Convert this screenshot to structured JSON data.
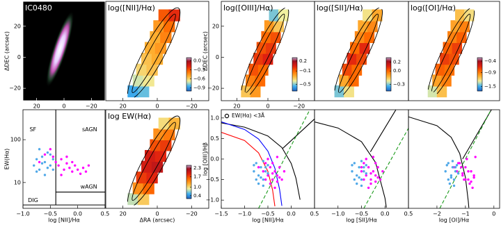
{
  "chart_data": [
    {
      "type": "image",
      "title": "IC0480",
      "ylabel": "ΔDEC (arcsec)",
      "xlim": [
        30,
        -30
      ],
      "ylim": [
        -28,
        36
      ],
      "xticks": [
        20,
        0,
        {
          "value": -20,
          "label": "−20"
        }
      ],
      "yticks": [
        20,
        0,
        {
          "value": -20,
          "label": "−20"
        }
      ]
    },
    {
      "type": "map",
      "title": "log([NII]/Hα)",
      "xlim": [
        30,
        -30
      ],
      "ylim": [
        -28,
        36
      ],
      "xticks": [
        20,
        0,
        {
          "value": -20,
          "label": "−20"
        }
      ],
      "x": [
        14,
        8,
        11,
        5,
        9,
        3,
        6,
        0,
        4,
        -2,
        1,
        -5,
        -1,
        -7,
        -4,
        -10
      ],
      "y": [
        -22,
        -22,
        -15,
        -15,
        -8,
        -8,
        -1,
        -1,
        6,
        6,
        13,
        13,
        20,
        20,
        27,
        27
      ],
      "values": [
        -0.85,
        -0.8,
        -0.7,
        -0.65,
        -0.6,
        -0.55,
        -0.55,
        -0.5,
        -0.5,
        -0.45,
        -0.5,
        -0.4,
        -0.45,
        -0.35,
        -0.3,
        -0.2
      ],
      "clim": [
        -1.0,
        0.1
      ],
      "cticks": [
        {
          "value": 0,
          "label": "0.0"
        },
        {
          "value": -0.3,
          "label": "−0.3"
        },
        {
          "value": -0.6,
          "label": "−0.6"
        },
        {
          "value": -0.9,
          "label": "−0.9"
        }
      ]
    },
    {
      "type": "map",
      "title": "log([OIII]/Hα)",
      "ylabel": "ΔDEC (arcsec)",
      "xlim": [
        30,
        -30
      ],
      "ylim": [
        -28,
        36
      ],
      "xticks": [
        20,
        0,
        {
          "value": -20,
          "label": "−20"
        }
      ],
      "yticks": [
        20,
        0,
        {
          "value": -20,
          "label": "−20"
        }
      ],
      "x": [
        14,
        8,
        11,
        5,
        9,
        3,
        6,
        0,
        4,
        -2,
        1,
        -5,
        -1,
        -7,
        -4,
        -10
      ],
      "y": [
        -22,
        -22,
        -15,
        -15,
        -8,
        -8,
        -1,
        -1,
        6,
        6,
        13,
        13,
        20,
        20,
        27,
        27
      ],
      "values": [
        -0.3,
        -0.2,
        -0.15,
        -0.1,
        -0.05,
        -0.1,
        0.0,
        0.05,
        -0.05,
        0.0,
        -0.1,
        -0.05,
        -0.2,
        -0.3,
        -0.5,
        -0.4
      ],
      "clim": [
        -0.7,
        0.3
      ],
      "cticks": [
        0.2,
        {
          "value": -0.1,
          "label": "−0.1"
        },
        {
          "value": -0.5,
          "label": "−0.5"
        }
      ]
    },
    {
      "type": "map",
      "title": "log([SII]/Hα)",
      "xlim": [
        30,
        -30
      ],
      "ylim": [
        -28,
        36
      ],
      "x": [
        14,
        8,
        11,
        5,
        9,
        3,
        6,
        0,
        4,
        -2,
        1,
        -5,
        -1,
        -7,
        -4,
        -10
      ],
      "y": [
        -22,
        -22,
        -15,
        -15,
        -8,
        -8,
        -1,
        -1,
        6,
        6,
        13,
        13,
        20,
        20,
        27,
        27
      ],
      "values": [
        -0.3,
        -0.2,
        -0.1,
        0.0,
        0.05,
        0.0,
        0.1,
        0.05,
        0.0,
        0.1,
        -0.05,
        0.0,
        -0.1,
        -0.05,
        -0.2,
        -0.1
      ],
      "clim": [
        -0.45,
        0.3
      ],
      "cticks": [
        0.2,
        {
          "value": 0,
          "label": "0.0"
        },
        {
          "value": -0.3,
          "label": "−0.3"
        }
      ]
    },
    {
      "type": "map",
      "title": "log([OI]/Hα)",
      "xlim": [
        30,
        -30
      ],
      "ylim": [
        -28,
        36
      ],
      "x": [
        14,
        8,
        11,
        5,
        9,
        3,
        6,
        0,
        4,
        -2,
        1,
        -5,
        -1,
        -7,
        -4,
        -10
      ],
      "y": [
        -22,
        -22,
        -15,
        -15,
        -8,
        -8,
        -1,
        -1,
        6,
        6,
        13,
        13,
        20,
        20,
        27,
        27
      ],
      "values": [
        -1.3,
        -1.1,
        -1.0,
        -0.9,
        -0.8,
        -0.85,
        -0.7,
        -0.75,
        -0.8,
        -0.7,
        -0.9,
        -0.8,
        -1.0,
        -0.9,
        -1.1,
        -1.2
      ],
      "clim": [
        -1.7,
        -0.25
      ],
      "cticks": [
        {
          "value": -0.4,
          "label": "−0.4"
        },
        {
          "value": -0.9,
          "label": "−0.9"
        },
        {
          "value": -1.5,
          "label": "−1.5"
        }
      ]
    },
    {
      "type": "scatter",
      "xlabel": "log [NII]/Hα",
      "ylabel": "EW(Hα)",
      "xlim": [
        -1.0,
        0.5
      ],
      "ylim": [
        2.5,
        500
      ],
      "log_y": true,
      "xticks": [
        {
          "value": -1,
          "label": "−1.0"
        },
        {
          "value": -0.5,
          "label": "−0.5"
        },
        {
          "value": 0,
          "label": "0.0"
        },
        0.5
      ],
      "yticks": [
        10,
        100
      ],
      "annotations": [
        "SF",
        "sAGN",
        "wAGN",
        "DIG"
      ],
      "lines": [
        {
          "color": "#000000",
          "x": [
            -0.4,
            -0.4
          ],
          "values": [
            3,
            500
          ]
        },
        {
          "color": "#000000",
          "x": [
            -0.4,
            0.5
          ],
          "values": [
            6,
            6
          ]
        },
        {
          "color": "#000000",
          "x": [
            -1.0,
            0.5
          ],
          "values": [
            3,
            3
          ]
        }
      ],
      "series": [
        {
          "color": "#ff00ff",
          "x": [
            -0.45,
            -0.4,
            -0.35,
            -0.3,
            -0.25,
            -0.2,
            -0.15,
            -0.1,
            -0.05,
            0,
            0.05,
            0.1,
            0.2,
            -0.6,
            -0.7,
            -0.5,
            -0.3,
            -0.2,
            -0.1,
            0.15
          ],
          "values": [
            40,
            30,
            25,
            35,
            20,
            28,
            22,
            18,
            25,
            20,
            16,
            22,
            25,
            45,
            30,
            60,
            15,
            40,
            30,
            18
          ]
        },
        {
          "color": "#4fa8e8",
          "x": [
            -0.8,
            -0.75,
            -0.7,
            -0.65,
            -0.6,
            -0.55,
            -0.5,
            -0.45,
            -0.7,
            -0.6,
            -0.55,
            -0.5,
            -0.65,
            -0.75,
            -0.45
          ],
          "values": [
            25,
            35,
            20,
            40,
            30,
            50,
            25,
            35,
            60,
            15,
            22,
            45,
            28,
            18,
            20
          ]
        }
      ]
    },
    {
      "type": "map",
      "title": "log EW(Hα)",
      "xlabel": "ΔRA (arcsec)",
      "xlim": [
        30,
        -30
      ],
      "ylim": [
        -28,
        36
      ],
      "xticks": [
        20,
        0,
        {
          "value": -20,
          "label": "−20"
        }
      ],
      "x": [
        14,
        8,
        11,
        5,
        9,
        3,
        6,
        0,
        4,
        -2,
        1,
        -5,
        -1,
        -7,
        -4,
        -10
      ],
      "y": [
        -22,
        -22,
        -15,
        -15,
        -8,
        -8,
        -1,
        -1,
        6,
        6,
        13,
        13,
        20,
        20,
        27,
        27
      ],
      "values": [
        0.8,
        1.1,
        1.4,
        1.6,
        1.8,
        1.9,
        2.0,
        2.1,
        2.0,
        1.9,
        1.7,
        1.8,
        1.4,
        1.5,
        1.0,
        1.2
      ],
      "clim": [
        0.2,
        2.5
      ],
      "cticks": [
        2.3,
        1.7,
        {
          "value": 1,
          "label": "1.0"
        },
        0.4
      ]
    },
    {
      "type": "scatter",
      "xlabel": "log [NII]/Hα",
      "ylabel": "log [OIII]/Hβ",
      "xlim": [
        -1.5,
        0.5
      ],
      "ylim": [
        -1.2,
        1.2
      ],
      "xticks": [
        {
          "value": -1.5,
          "label": "−1.5"
        },
        {
          "value": -1,
          "label": "−1.0"
        },
        {
          "value": -0.5,
          "label": "−0.5"
        },
        {
          "value": 0,
          "label": "0.0"
        },
        0.5
      ],
      "yticks": [
        {
          "value": 1,
          "label": "1.0"
        },
        0.5,
        {
          "value": 0,
          "label": "0.0"
        },
        {
          "value": -0.5,
          "label": "−0.5"
        },
        {
          "value": -1,
          "label": "−1.0"
        }
      ],
      "lines": [
        {
          "color": "#000000",
          "x": [
            -1.5,
            -1.0,
            -0.5,
            -0.2,
            0.0,
            0.1,
            0.19
          ],
          "values": [
            0.88,
            0.775,
            0.561,
            0.28,
            -0.108,
            -0.459,
            -0.99
          ]
        },
        {
          "color": "#0000ff",
          "x": [
            -1.5,
            -1.0,
            -0.7,
            -0.5,
            -0.35,
            -0.25,
            -0.2
          ],
          "values": [
            0.906,
            0.719,
            0.487,
            0.191,
            -0.225,
            -0.733,
            -1.14
          ]
        },
        {
          "color": "#ff0000",
          "x": [
            -1.5,
            -1.0,
            -0.7,
            -0.5,
            -0.4,
            -0.35
          ],
          "values": [
            0.65,
            0.45,
            0.15,
            -0.3,
            -0.75,
            -1.15
          ]
        },
        {
          "color": "#000000",
          "x": [
            -0.18,
            0.5
          ],
          "values": [
            0.261,
            0.975
          ]
        },
        {
          "color": "#1a9a1a",
          "style": "dashed",
          "x": [
            -0.7,
            0.4
          ],
          "values": [
            -1.2,
            1.2
          ]
        }
      ],
      "series": [
        {
          "color": "#ff00ff",
          "x": [
            -0.6,
            -0.55,
            -0.5,
            -0.45,
            -0.4,
            -0.35,
            -0.3,
            -0.25,
            -0.2,
            -0.5,
            -0.45,
            -0.4,
            -0.35,
            -0.3,
            -0.55,
            -0.15,
            -0.4,
            -0.3,
            -0.7,
            -0.25
          ],
          "values": [
            -0.3,
            -0.1,
            -0.4,
            -0.2,
            -0.5,
            -0.3,
            -0.4,
            -0.2,
            -0.5,
            0.0,
            -0.6,
            -0.1,
            -0.7,
            0.05,
            -0.5,
            -0.3,
            -0.35,
            -0.55,
            -0.2,
            -0.45
          ]
        },
        {
          "color": "#4fa8e8",
          "x": [
            -0.8,
            -0.75,
            -0.7,
            -0.65,
            -0.6,
            -0.55,
            -0.5,
            -0.7,
            -0.6,
            -0.65,
            -0.75,
            -0.55,
            -0.5,
            -0.8,
            -0.6
          ],
          "values": [
            -0.3,
            -0.1,
            -0.4,
            -0.2,
            -0.5,
            -0.3,
            -0.15,
            -0.6,
            -0.05,
            -0.45,
            -0.5,
            -0.2,
            -0.35,
            -0.15,
            -0.65
          ]
        },
        {
          "name": "EW(Hα) <3Å",
          "color": "#000000",
          "marker": "open",
          "x": [],
          "values": []
        }
      ]
    },
    {
      "type": "scatter",
      "xlabel": "log [SII]/Hα",
      "xlim": [
        -1.5,
        0.5
      ],
      "ylim": [
        -1.2,
        1.2
      ],
      "xticks": [
        {
          "value": -1,
          "label": "−1.0"
        },
        {
          "value": -0.5,
          "label": "−0.5"
        },
        {
          "value": 0,
          "label": "0.0"
        },
        0.5
      ],
      "lines": [
        {
          "color": "#000000",
          "x": [
            -1.5,
            -1.0,
            -0.5,
            -0.2,
            0.0,
            0.03
          ],
          "values": [
            0.904,
            0.755,
            0.422,
            -0.085,
            -0.95,
            -1.18
          ]
        },
        {
          "color": "#000000",
          "x": [
            -0.31,
            0.23
          ],
          "values": [
            0.174,
            1.195
          ]
        },
        {
          "color": "#1a9a1a",
          "style": "dashed",
          "x": [
            -0.45,
            0.5
          ],
          "values": [
            -1.2,
            0.75
          ]
        }
      ],
      "series": [
        {
          "color": "#ff00ff",
          "x": [
            -0.5,
            -0.45,
            -0.4,
            -0.35,
            -0.3,
            -0.25,
            -0.2,
            -0.15,
            -0.1,
            -0.4,
            -0.3,
            -0.2,
            -0.35,
            -0.25,
            -0.45,
            -0.05,
            -0.3,
            -0.2,
            -0.5,
            -0.15
          ],
          "values": [
            -0.3,
            -0.1,
            -0.4,
            -0.2,
            -0.5,
            -0.3,
            -0.4,
            -0.2,
            -0.5,
            0.0,
            -0.6,
            -0.1,
            -0.7,
            0.05,
            -0.5,
            -0.3,
            -0.35,
            -0.55,
            -0.2,
            -0.45
          ]
        },
        {
          "color": "#4fa8e8",
          "x": [
            -0.7,
            -0.65,
            -0.6,
            -0.55,
            -0.5,
            -0.45,
            -0.4,
            -0.6,
            -0.5,
            -0.55,
            -0.65,
            -0.45,
            -0.4,
            -0.7,
            -0.5
          ],
          "values": [
            -0.3,
            -0.1,
            -0.4,
            -0.2,
            -0.5,
            -0.3,
            -0.15,
            -0.6,
            -0.05,
            -0.45,
            -0.5,
            -0.2,
            -0.35,
            -0.15,
            -0.65
          ]
        }
      ]
    },
    {
      "type": "scatter",
      "xlabel": "log [OI]/Hα",
      "xlim": [
        -3.0,
        0.2
      ],
      "ylim": [
        -1.2,
        1.2
      ],
      "xticks": [
        {
          "value": -2,
          "label": "−2"
        },
        {
          "value": -1,
          "label": "−1"
        },
        0
      ],
      "lines": [
        {
          "color": "#000000",
          "x": [
            -3.0,
            -2.0,
            -1.5,
            -1.2,
            -1.0,
            -0.9,
            -0.88
          ],
          "values": [
            1.027,
            0.812,
            0.528,
            0.133,
            -0.45,
            -1.025,
            -1.187
          ]
        },
        {
          "color": "#000000",
          "x": [
            -1.1,
            -0.08
          ],
          "values": [
            0.0,
            1.21
          ]
        },
        {
          "color": "#1a9a1a",
          "style": "dashed",
          "x": [
            -1.9,
            -0.1
          ],
          "values": [
            -1.2,
            1.2
          ]
        }
      ],
      "series": [
        {
          "color": "#ff00ff",
          "x": [
            -1.3,
            -1.2,
            -1.1,
            -1.0,
            -0.9,
            -0.8,
            -0.7,
            -1.15,
            -1.05,
            -0.95,
            -0.85,
            -1.25,
            -0.75,
            -0.65,
            -1.0,
            -0.9,
            -1.1,
            -0.8,
            -1.4,
            -0.7
          ],
          "values": [
            -0.3,
            -0.1,
            -0.4,
            -0.2,
            -0.5,
            -0.3,
            -0.4,
            -0.2,
            -0.5,
            0.0,
            -0.6,
            -0.1,
            -0.7,
            0.05,
            -0.5,
            -0.3,
            -0.35,
            -0.55,
            -0.2,
            -0.45
          ]
        },
        {
          "color": "#4fa8e8",
          "x": [
            -1.7,
            -1.6,
            -1.5,
            -1.45,
            -1.4,
            -1.35,
            -1.3,
            -1.55,
            -1.45,
            -1.5,
            -1.6,
            -1.35,
            -1.25,
            -1.65,
            -1.4
          ],
          "values": [
            -0.3,
            -0.1,
            -0.4,
            -0.2,
            -0.5,
            -0.3,
            -0.15,
            -0.6,
            -0.05,
            -0.45,
            -0.5,
            -0.2,
            -0.35,
            -0.15,
            -0.65
          ]
        }
      ]
    }
  ]
}
